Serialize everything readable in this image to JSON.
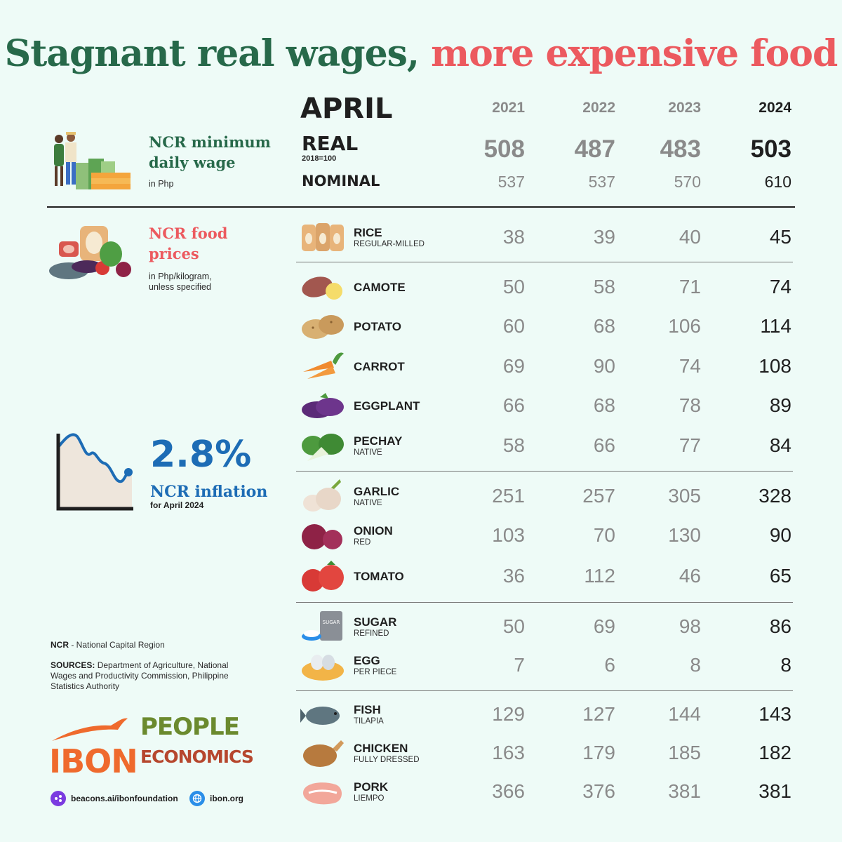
{
  "title": {
    "part1": "Stagnant real wages,",
    "part2": "more expensive food"
  },
  "colors": {
    "green": "#27694a",
    "red": "#ec5a5f",
    "blue": "#1d6cb5",
    "background": "#eefbf7"
  },
  "header": {
    "month": "APRIL",
    "years": [
      "2021",
      "2022",
      "2023",
      "2024"
    ]
  },
  "wage": {
    "heading_line1": "NCR minimum",
    "heading_line2": "daily wage",
    "unit": "in Php",
    "real_label": "REAL",
    "real_base": "2018=100",
    "real_values": [
      "508",
      "487",
      "483",
      "503"
    ],
    "nominal_label": "NOMINAL",
    "nominal_values": [
      "537",
      "537",
      "570",
      "610"
    ]
  },
  "food": {
    "heading_line1": "NCR food",
    "heading_line2": "prices",
    "unit_line1": "in Php/kilogram,",
    "unit_line2": "unless specified",
    "items": [
      {
        "name": "RICE",
        "sub": "REGULAR-MILLED",
        "icon": "rice-sack-icon",
        "values": [
          "38",
          "39",
          "40",
          "45"
        ]
      },
      {
        "name": "CAMOTE",
        "sub": "",
        "icon": "camote-icon",
        "values": [
          "50",
          "58",
          "71",
          "74"
        ]
      },
      {
        "name": "POTATO",
        "sub": "",
        "icon": "potato-icon",
        "values": [
          "60",
          "68",
          "106",
          "114"
        ]
      },
      {
        "name": "CARROT",
        "sub": "",
        "icon": "carrot-icon",
        "values": [
          "69",
          "90",
          "74",
          "108"
        ]
      },
      {
        "name": "EGGPLANT",
        "sub": "",
        "icon": "eggplant-icon",
        "values": [
          "66",
          "68",
          "78",
          "89"
        ]
      },
      {
        "name": "PECHAY",
        "sub": "NATIVE",
        "icon": "pechay-icon",
        "values": [
          "58",
          "66",
          "77",
          "84"
        ]
      },
      {
        "name": "GARLIC",
        "sub": "NATIVE",
        "icon": "garlic-icon",
        "values": [
          "251",
          "257",
          "305",
          "328"
        ]
      },
      {
        "name": "ONION",
        "sub": "RED",
        "icon": "onion-icon",
        "values": [
          "103",
          "70",
          "130",
          "90"
        ]
      },
      {
        "name": "TOMATO",
        "sub": "",
        "icon": "tomato-icon",
        "values": [
          "36",
          "112",
          "46",
          "65"
        ]
      },
      {
        "name": "SUGAR",
        "sub": "REFINED",
        "icon": "sugar-bag-icon",
        "sugar_bag_text": "SUGAR",
        "values": [
          "50",
          "69",
          "98",
          "86"
        ]
      },
      {
        "name": "EGG",
        "sub": "PER PIECE",
        "icon": "egg-nest-icon",
        "values": [
          "7",
          "6",
          "8",
          "8"
        ]
      },
      {
        "name": "FISH",
        "sub": "TILAPIA",
        "icon": "fish-icon",
        "values": [
          "129",
          "127",
          "144",
          "143"
        ]
      },
      {
        "name": "CHICKEN",
        "sub": "FULLY DRESSED",
        "icon": "chicken-icon",
        "values": [
          "163",
          "179",
          "185",
          "182"
        ]
      },
      {
        "name": "PORK",
        "sub": "LIEMPO",
        "icon": "pork-icon",
        "values": [
          "366",
          "376",
          "381",
          "381"
        ]
      }
    ]
  },
  "inflation": {
    "value": "2.8%",
    "heading": "NCR inflation",
    "sub": "for April 2024"
  },
  "notes": {
    "ncr_abbr": "NCR",
    "ncr_def": "- National Capital Region",
    "sources_label": "SOURCES:",
    "sources_text": "Department of Agriculture, National Wages and Productivity Commission, Philippine Statistics Authority"
  },
  "logos": {
    "ibon": "IBON",
    "people": "PEOPLE",
    "economics": "ECONOMICS",
    "link1": "beacons.ai/ibonfoundation",
    "link2": "ibon.org"
  }
}
